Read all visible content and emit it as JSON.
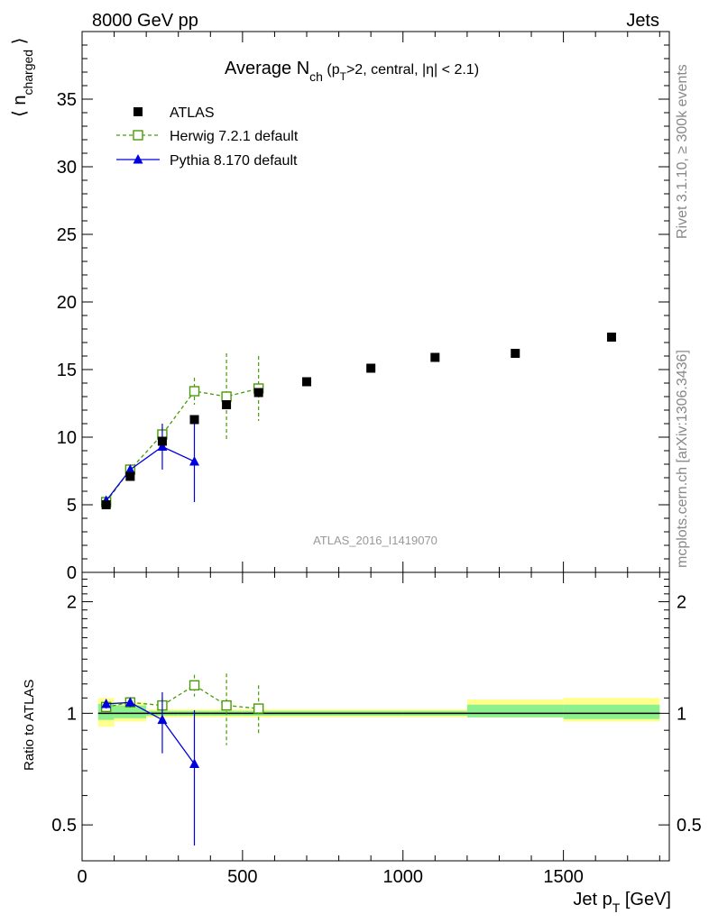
{
  "header": {
    "left": "8000 GeV pp",
    "right": "Jets"
  },
  "side_labels": {
    "rivet": "Rivet 3.1.10, ≥ 300k events",
    "mcplots": "mcplots.cern.ch [arXiv:1306.3436]"
  },
  "watermark": "ATLAS_2016_I1419070",
  "chart_data": [
    {
      "type": "scatter",
      "title": {
        "text": "Average N",
        "sub": "ch",
        "rest_a": " (p",
        "rest_sub": "T",
        "rest_b": ">2, central, |η| < 2.1)"
      },
      "ylabel": {
        "text": "⟨ n",
        "sub": "charged",
        "close": " ⟩"
      },
      "ylim": [
        0,
        40
      ],
      "xlim": [
        0,
        1830
      ],
      "yticks": [
        0,
        5,
        10,
        15,
        20,
        25,
        30,
        35
      ],
      "legend_position": "top-left",
      "series": [
        {
          "name": "ATLAS",
          "color": "#000000",
          "marker": "filled-square",
          "x": [
            75,
            150,
            250,
            350,
            450,
            550,
            700,
            900,
            1100,
            1350,
            1650
          ],
          "y": [
            5.0,
            7.1,
            9.7,
            11.3,
            12.4,
            13.3,
            14.1,
            15.1,
            15.9,
            16.2,
            17.4
          ]
        },
        {
          "name": "Herwig 7.2.1 default",
          "color": "#4a9a08",
          "marker": "open-square",
          "line": "dashed",
          "x": [
            75,
            150,
            250,
            350,
            450,
            550
          ],
          "y": [
            5.2,
            7.6,
            10.2,
            13.4,
            13.0,
            13.6
          ],
          "err": [
            0.2,
            0.3,
            0.5,
            1.0,
            3.2,
            2.4
          ]
        },
        {
          "name": "Pythia 8.170 default",
          "color": "#0000dd",
          "marker": "filled-triangle",
          "line": "solid",
          "x": [
            75,
            150,
            250,
            350
          ],
          "y": [
            5.3,
            7.6,
            9.3,
            8.2
          ],
          "err": [
            0.2,
            0.3,
            1.7,
            3.0
          ]
        }
      ]
    },
    {
      "type": "scatter",
      "ylabel": "Ratio to ATLAS",
      "xlabel": {
        "text": "Jet p",
        "sub": "T",
        "rest": " [GeV]"
      },
      "ylim": [
        0.4,
        2.4
      ],
      "xlim": [
        0,
        1830
      ],
      "xticks": [
        0,
        500,
        1000,
        1500
      ],
      "yticks": [
        0.5,
        1,
        2
      ],
      "ytick_labels": [
        "0.5",
        "1",
        "2"
      ],
      "bands": [
        {
          "x": [
            50,
            100
          ],
          "inner": [
            0.96,
            1.06
          ],
          "outer": [
            0.92,
            1.1
          ]
        },
        {
          "x": [
            100,
            200
          ],
          "inner": [
            0.97,
            1.05
          ],
          "outer": [
            0.95,
            1.07
          ]
        },
        {
          "x": [
            200,
            300
          ],
          "inner": [
            0.985,
            1.015
          ],
          "outer": [
            0.975,
            1.025
          ]
        },
        {
          "x": [
            300,
            400
          ],
          "inner": [
            0.985,
            1.015
          ],
          "outer": [
            0.975,
            1.025
          ]
        },
        {
          "x": [
            400,
            500
          ],
          "inner": [
            0.985,
            1.015
          ],
          "outer": [
            0.975,
            1.025
          ]
        },
        {
          "x": [
            500,
            600
          ],
          "inner": [
            0.985,
            1.015
          ],
          "outer": [
            0.975,
            1.025
          ]
        },
        {
          "x": [
            600,
            800
          ],
          "inner": [
            0.985,
            1.015
          ],
          "outer": [
            0.975,
            1.025
          ]
        },
        {
          "x": [
            800,
            1000
          ],
          "inner": [
            0.985,
            1.015
          ],
          "outer": [
            0.975,
            1.025
          ]
        },
        {
          "x": [
            1000,
            1200
          ],
          "inner": [
            0.985,
            1.015
          ],
          "outer": [
            0.975,
            1.025
          ]
        },
        {
          "x": [
            1200,
            1500
          ],
          "inner": [
            0.975,
            1.055
          ],
          "outer": [
            0.98,
            1.09
          ]
        },
        {
          "x": [
            1500,
            1800
          ],
          "inner": [
            0.965,
            1.055
          ],
          "outer": [
            0.95,
            1.1
          ]
        }
      ],
      "series": [
        {
          "name": "Herwig 7.2.1 default",
          "color": "#4a9a08",
          "marker": "open-square",
          "line": "dashed",
          "x": [
            75,
            150,
            250,
            350,
            450,
            550
          ],
          "y": [
            1.04,
            1.07,
            1.05,
            1.19,
            1.05,
            1.03
          ],
          "err": [
            0.03,
            0.03,
            0.05,
            0.08,
            0.23,
            0.16
          ]
        },
        {
          "name": "Pythia 8.170 default",
          "color": "#0000dd",
          "marker": "filled-triangle",
          "line": "solid",
          "x": [
            75,
            150,
            250,
            350
          ],
          "y": [
            1.06,
            1.07,
            0.96,
            0.73
          ],
          "err": [
            0.03,
            0.03,
            0.18,
            0.29
          ]
        }
      ]
    }
  ]
}
